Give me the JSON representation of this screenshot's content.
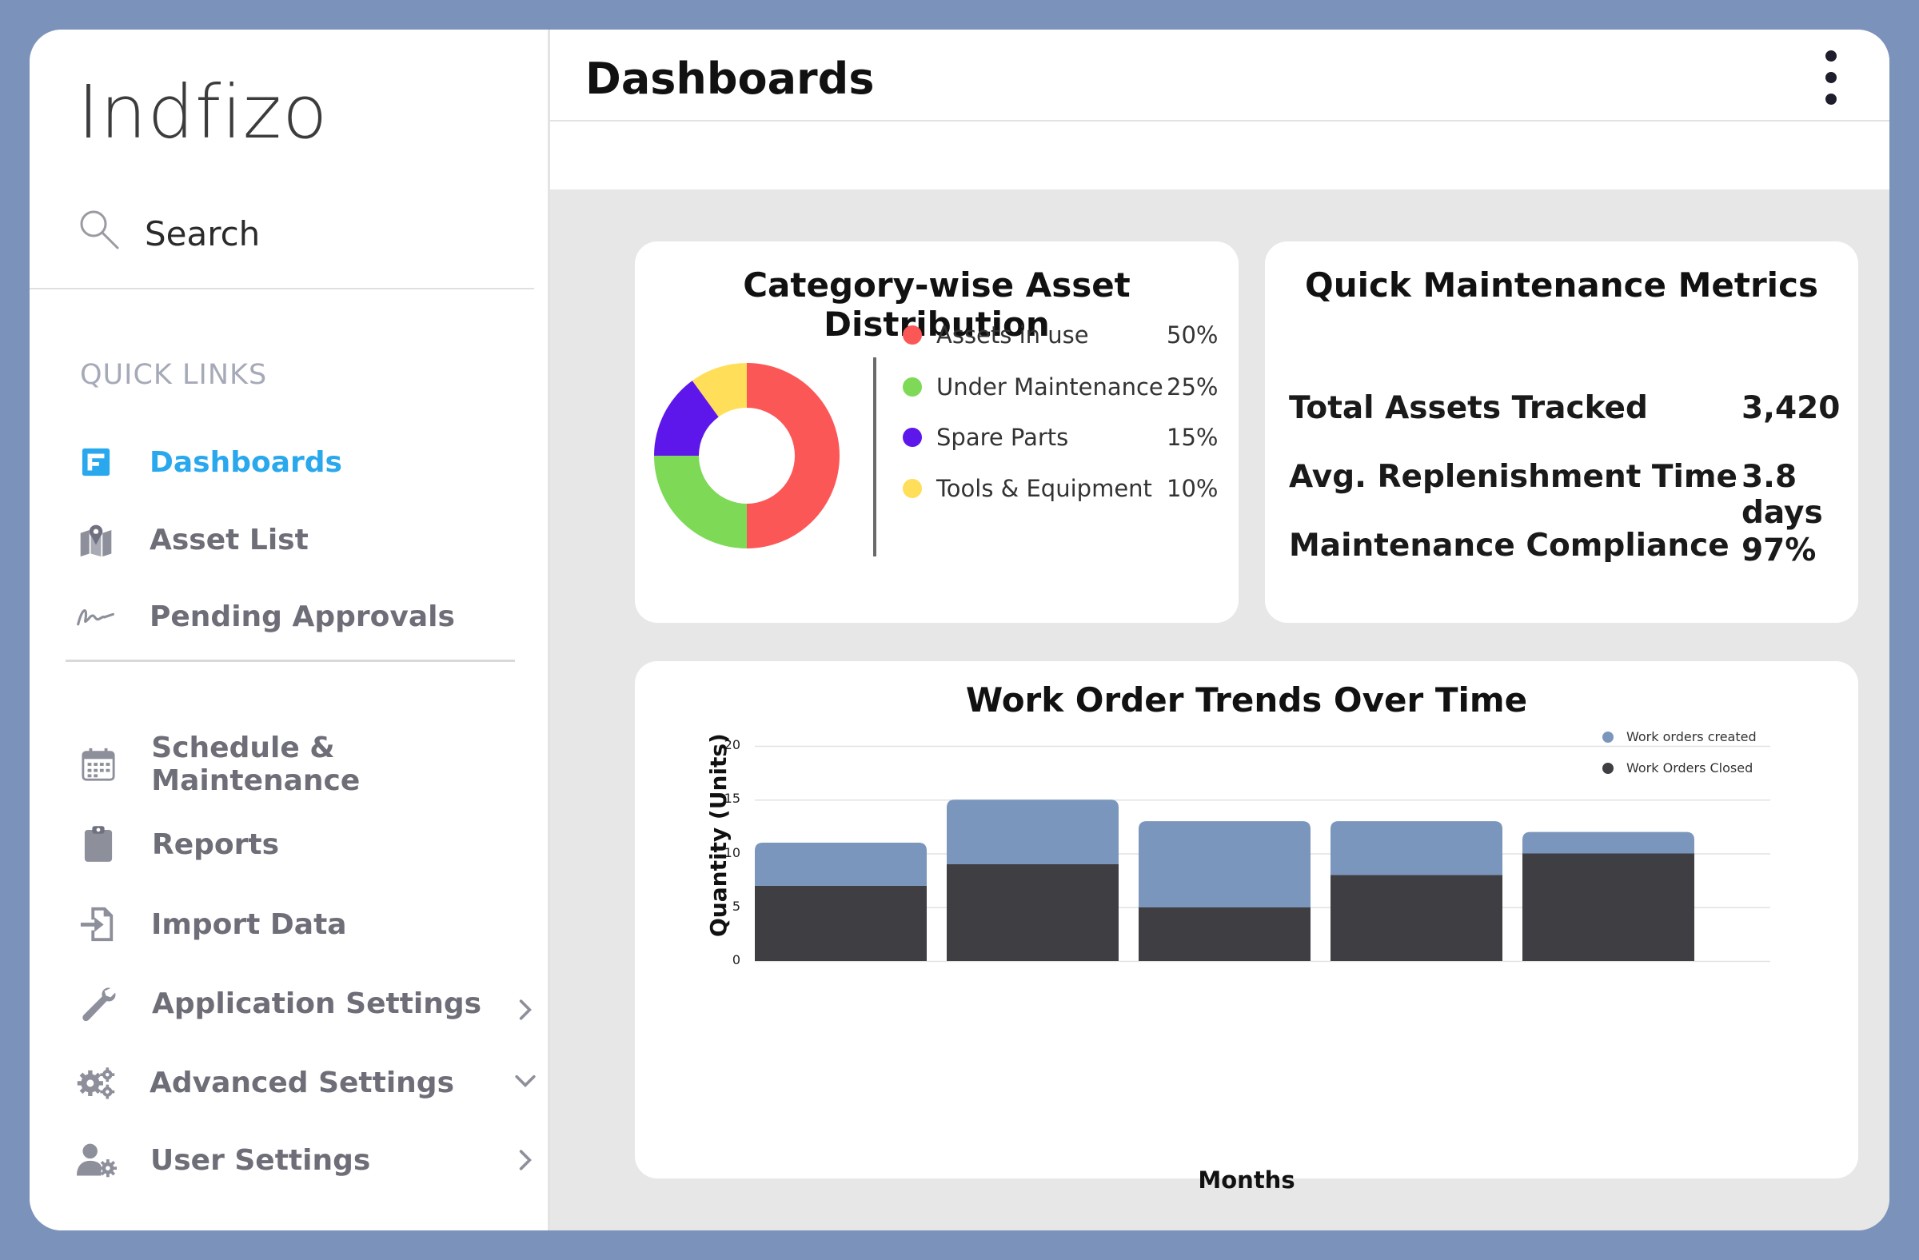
{
  "app": {
    "logo": "Indfizo",
    "brand_colors": {
      "accent": "#2aa8ee",
      "frame": "#7b93bb"
    }
  },
  "sidebar": {
    "search_label": "Search",
    "quick_links_title": "QUICK LINKS",
    "quick_links": [
      {
        "label": "Dashboards",
        "icon": "dashboard-icon",
        "active": true
      },
      {
        "label": "Asset List",
        "icon": "map-pin-icon"
      },
      {
        "label": "Pending Approvals",
        "icon": "signature-icon"
      }
    ],
    "items": [
      {
        "label": "Schedule & Maintenance",
        "icon": "calendar-icon"
      },
      {
        "label": "Reports",
        "icon": "clipboard-icon"
      },
      {
        "label": "Import Data",
        "icon": "import-icon"
      },
      {
        "label": "Application Settings",
        "icon": "wrench-icon",
        "chevron": "right"
      },
      {
        "label": "Advanced Settings",
        "icon": "gears-icon",
        "chevron": "down"
      },
      {
        "label": "User Settings",
        "icon": "user-gear-icon",
        "chevron": "right"
      }
    ]
  },
  "header": {
    "title": "Dashboards",
    "menu_icon": "kebab-menu-icon"
  },
  "asset_distribution": {
    "title": "Category-wise Asset Distribution",
    "legend": [
      {
        "label": "Assets in use",
        "pct": "50%",
        "value": 50,
        "color": "#fc5757"
      },
      {
        "label": "Under Maintenance",
        "pct": "25%",
        "value": 25,
        "color": "#7ed957"
      },
      {
        "label": "Spare Parts",
        "pct": "15%",
        "value": 15,
        "color": "#5e17eb"
      },
      {
        "label": "Tools & Equipment",
        "pct": "10%",
        "value": 10,
        "color": "#ffde59"
      }
    ]
  },
  "metrics": {
    "title": "Quick Maintenance Metrics",
    "rows": [
      {
        "label": "Total Assets Tracked",
        "value": "3,420"
      },
      {
        "label": "Avg. Replenishment Time",
        "value": "3.8 days"
      },
      {
        "label": "Maintenance Compliance",
        "value": "97%"
      }
    ]
  },
  "chart_data": {
    "type": "bar",
    "stacked": true,
    "title": "Work Order Trends Over Time",
    "xlabel": "Months",
    "ylabel": "Quantity (Units)",
    "ylim": [
      0,
      20
    ],
    "yticks": [
      "0",
      "5",
      "10",
      "15",
      "20"
    ],
    "categories": [
      "",
      "",
      "",
      "",
      ""
    ],
    "legend_position": "top-right",
    "grid": true,
    "series": [
      {
        "name": "Work Orders Closed",
        "values": [
          7,
          9,
          5,
          8,
          10
        ],
        "color": "#3f3e42"
      },
      {
        "name": "Work orders created",
        "values": [
          4,
          6,
          8,
          5,
          2
        ],
        "color": "#7b96bd"
      }
    ],
    "legend": [
      "Work orders created",
      "Work Orders Closed"
    ]
  }
}
